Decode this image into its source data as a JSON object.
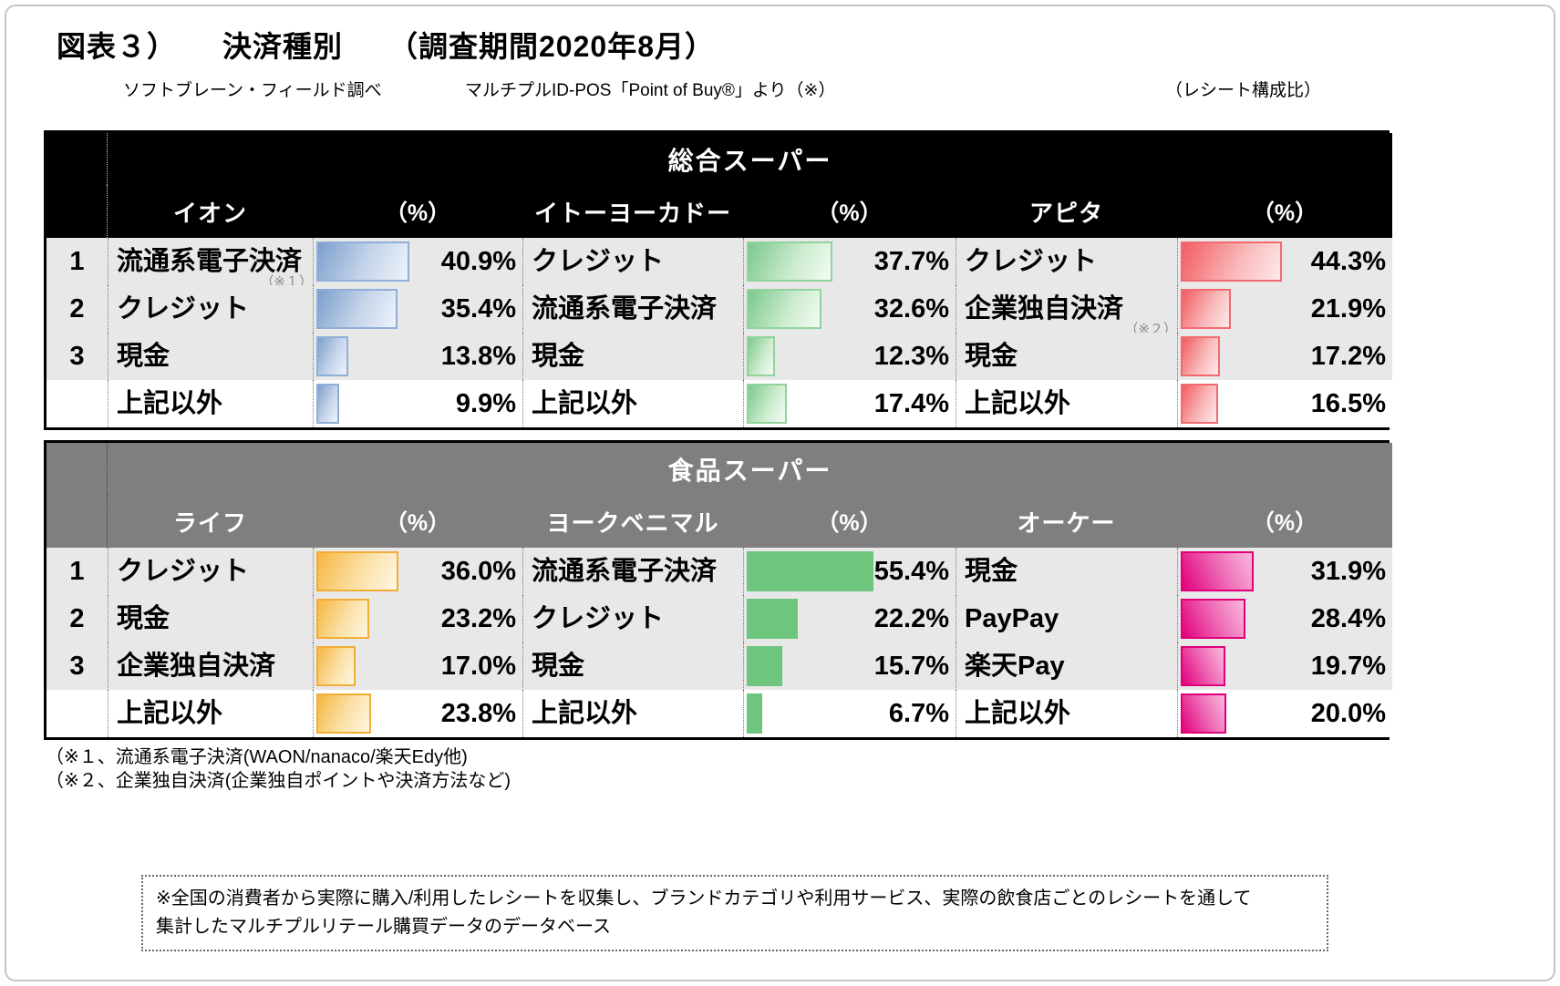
{
  "title": "図表３）　　決済種別　　（調査期間2020年8月）",
  "subtitle_left": "ソフトブレーン・フィールド調べ",
  "subtitle_mid": "マルチプルID-POS「Point of Buy®」より（※）",
  "subtitle_right": "（レシート構成比）",
  "percent_label": "（%）",
  "colors": {
    "table1_header_bg": "#000000",
    "table2_header_bg": "#7f7f7f",
    "row_bg": "#e8e8e8",
    "aeon_bar": "#7d9fcd",
    "itoyokado_bar": "#7cc88c",
    "apita_bar": "#f25c62",
    "life_bar": "#f6b741",
    "yorkbenimaru_bar": "#6ec57e",
    "ok_bar": "#e2007d"
  },
  "tables": [
    {
      "group": "総合スーパー",
      "ranks": [
        "1",
        "2",
        "3",
        ""
      ],
      "stores": [
        {
          "name": "イオン",
          "rows": [
            {
              "label": "流通系電子決済",
              "note": "（※１）",
              "value": "40.9%",
              "pct": 40.9
            },
            {
              "label": "クレジット",
              "note": "",
              "value": "35.4%",
              "pct": 35.4
            },
            {
              "label": "現金",
              "note": "",
              "value": "13.8%",
              "pct": 13.8
            },
            {
              "label": "上記以外",
              "note": "",
              "value": "9.9%",
              "pct": 9.9
            }
          ]
        },
        {
          "name": "イトーヨーカドー",
          "rows": [
            {
              "label": "クレジット",
              "note": "",
              "value": "37.7%",
              "pct": 37.7
            },
            {
              "label": "流通系電子決済",
              "note": "",
              "value": "32.6%",
              "pct": 32.6
            },
            {
              "label": "現金",
              "note": "",
              "value": "12.3%",
              "pct": 12.3
            },
            {
              "label": "上記以外",
              "note": "",
              "value": "17.4%",
              "pct": 17.4
            }
          ]
        },
        {
          "name": "アピタ",
          "rows": [
            {
              "label": "クレジット",
              "note": "",
              "value": "44.3%",
              "pct": 44.3
            },
            {
              "label": "企業独自決済",
              "note": "（※２）",
              "value": "21.9%",
              "pct": 21.9
            },
            {
              "label": "現金",
              "note": "",
              "value": "17.2%",
              "pct": 17.2
            },
            {
              "label": "上記以外",
              "note": "",
              "value": "16.5%",
              "pct": 16.5
            }
          ]
        }
      ]
    },
    {
      "group": "食品スーパー",
      "ranks": [
        "1",
        "2",
        "3",
        ""
      ],
      "stores": [
        {
          "name": "ライフ",
          "rows": [
            {
              "label": "クレジット",
              "note": "",
              "value": "36.0%",
              "pct": 36.0
            },
            {
              "label": "現金",
              "note": "",
              "value": "23.2%",
              "pct": 23.2
            },
            {
              "label": "企業独自決済",
              "note": "",
              "value": "17.0%",
              "pct": 17.0
            },
            {
              "label": "上記以外",
              "note": "",
              "value": "23.8%",
              "pct": 23.8
            }
          ]
        },
        {
          "name": "ヨークベニマル",
          "rows": [
            {
              "label": "流通系電子決済",
              "note": "",
              "value": "55.4%",
              "pct": 55.4
            },
            {
              "label": "クレジット",
              "note": "",
              "value": "22.2%",
              "pct": 22.2
            },
            {
              "label": "現金",
              "note": "",
              "value": "15.7%",
              "pct": 15.7
            },
            {
              "label": "上記以外",
              "note": "",
              "value": "6.7%",
              "pct": 6.7
            }
          ]
        },
        {
          "name": "オーケー",
          "rows": [
            {
              "label": "現金",
              "note": "",
              "value": "31.9%",
              "pct": 31.9
            },
            {
              "label": "PayPay",
              "note": "",
              "value": "28.4%",
              "pct": 28.4
            },
            {
              "label": "楽天Pay",
              "note": "",
              "value": "19.7%",
              "pct": 19.7
            },
            {
              "label": "上記以外",
              "note": "",
              "value": "20.0%",
              "pct": 20.0
            }
          ]
        }
      ]
    }
  ],
  "footnotes": [
    "（※１、流通系電子決済(WAON/nanaco/楽天Edy他)",
    "（※２、企業独自決済(企業独自ポイントや決済方法など)"
  ],
  "box_note_line1": "※全国の消費者から実際に購入/利用したレシートを収集し、ブランドカテゴリや利用サービス、実際の飲食店ごとのレシートを通して",
  "box_note_line2": "集計したマルチプルリテール購買データのデータベース",
  "chart_data": [
    {
      "type": "bar",
      "orientation": "horizontal",
      "title": "総合スーパー",
      "unit": "%（レシート構成比）",
      "series": [
        {
          "name": "イオン",
          "categories": [
            "流通系電子決済",
            "クレジット",
            "現金",
            "上記以外"
          ],
          "values": [
            40.9,
            35.4,
            13.8,
            9.9
          ]
        },
        {
          "name": "イトーヨーカドー",
          "categories": [
            "クレジット",
            "流通系電子決済",
            "現金",
            "上記以外"
          ],
          "values": [
            37.7,
            32.6,
            12.3,
            17.4
          ]
        },
        {
          "name": "アピタ",
          "categories": [
            "クレジット",
            "企業独自決済",
            "現金",
            "上記以外"
          ],
          "values": [
            44.3,
            21.9,
            17.2,
            16.5
          ]
        }
      ]
    },
    {
      "type": "bar",
      "orientation": "horizontal",
      "title": "食品スーパー",
      "unit": "%（レシート構成比）",
      "series": [
        {
          "name": "ライフ",
          "categories": [
            "クレジット",
            "現金",
            "企業独自決済",
            "上記以外"
          ],
          "values": [
            36.0,
            23.2,
            17.0,
            23.8
          ]
        },
        {
          "name": "ヨークベニマル",
          "categories": [
            "流通系電子決済",
            "クレジット",
            "現金",
            "上記以外"
          ],
          "values": [
            55.4,
            22.2,
            15.7,
            6.7
          ]
        },
        {
          "name": "オーケー",
          "categories": [
            "現金",
            "PayPay",
            "楽天Pay",
            "上記以外"
          ],
          "values": [
            31.9,
            28.4,
            19.7,
            20.0
          ]
        }
      ]
    }
  ]
}
